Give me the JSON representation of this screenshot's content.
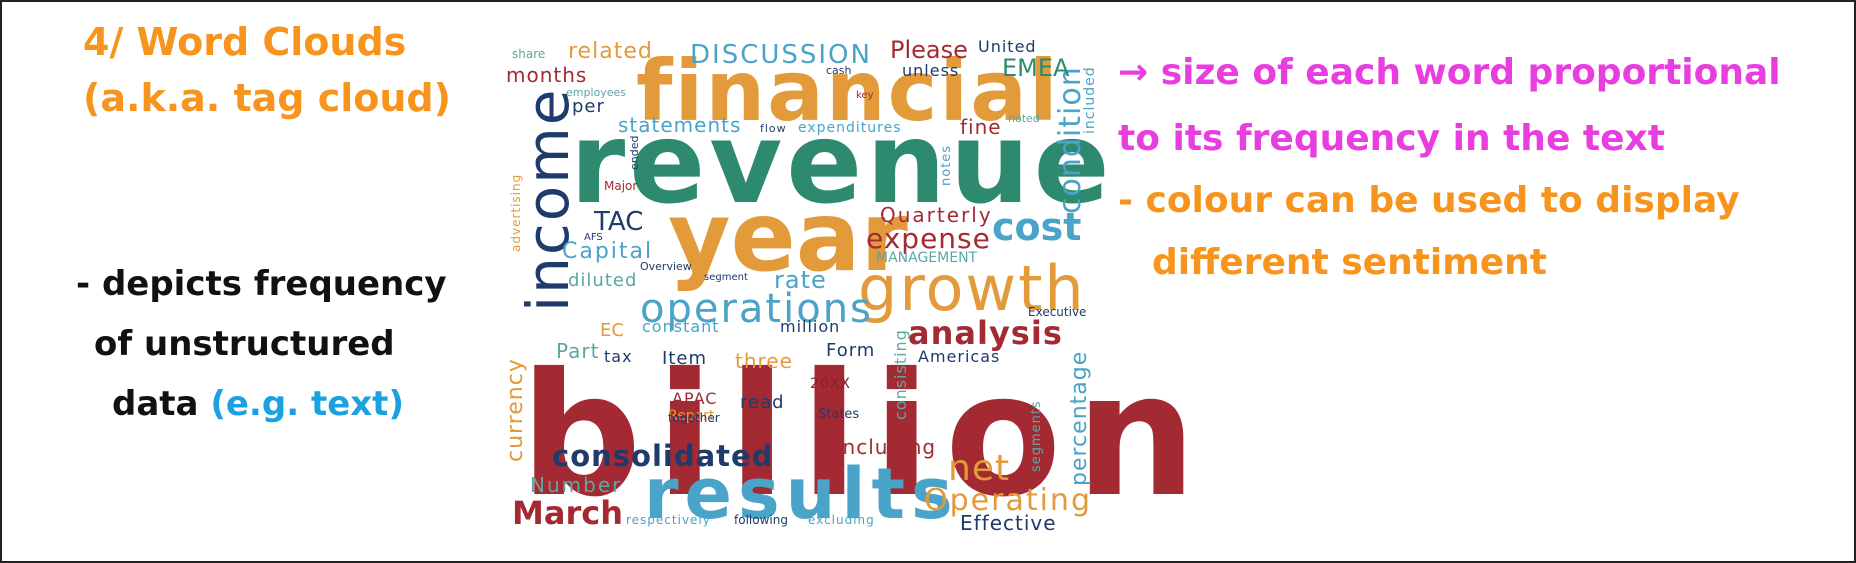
{
  "slide": {
    "title_line1": "4/ Word Clouds",
    "title_line2": "(a.k.a. tag cloud)",
    "left_line1": "- depicts frequency",
    "left_line2": "of unstructured",
    "left_line3_prefix": "data ",
    "left_line3_paren_open": "(",
    "left_line3_eg": "e.g. text",
    "left_line3_paren_close": ")",
    "right_line1": "→ size of each word proportional",
    "right_line2": "to its frequency in the text",
    "right_line3": "- colour can be used to display",
    "right_line4": "different sentiment",
    "colors": {
      "orange": "#f7941d",
      "magenta": "#e83ee0",
      "black": "#111111",
      "blue": "#1ba1e2"
    }
  },
  "wordcloud": {
    "palette": {
      "red": "#a32a33",
      "green": "#2e8a6e",
      "orange": "#e39a3b",
      "navy": "#1f3b6b",
      "blue": "#4aa3c8",
      "teal": "#5aa8a0",
      "darkred": "#8c1f2a"
    },
    "words": [
      {
        "text": "billion",
        "color": "red"
      },
      {
        "text": "revenue",
        "color": "green"
      },
      {
        "text": "year",
        "color": "orange"
      },
      {
        "text": "financial",
        "color": "orange"
      },
      {
        "text": "income",
        "color": "navy"
      },
      {
        "text": "growth",
        "color": "orange"
      },
      {
        "text": "results",
        "color": "blue"
      },
      {
        "text": "operations",
        "color": "blue"
      },
      {
        "text": "cost",
        "color": "blue"
      },
      {
        "text": "consolidated",
        "color": "navy"
      },
      {
        "text": "analysis",
        "color": "red"
      },
      {
        "text": "condition",
        "color": "blue"
      },
      {
        "text": "net",
        "color": "orange"
      },
      {
        "text": "Operating",
        "color": "orange"
      },
      {
        "text": "March",
        "color": "red"
      },
      {
        "text": "expense",
        "color": "red"
      },
      {
        "text": "DISCUSSION",
        "color": "blue"
      },
      {
        "text": "Please",
        "color": "red"
      },
      {
        "text": "related",
        "color": "orange"
      },
      {
        "text": "EMEA",
        "color": "green"
      },
      {
        "text": "currency",
        "color": "orange"
      },
      {
        "text": "percentage",
        "color": "blue"
      },
      {
        "text": "Capital",
        "color": "blue"
      },
      {
        "text": "TAC",
        "color": "navy"
      },
      {
        "text": "rate",
        "color": "blue"
      },
      {
        "text": "statements",
        "color": "blue"
      },
      {
        "text": "months",
        "color": "red"
      },
      {
        "text": "Quarterly",
        "color": "red"
      },
      {
        "text": "three",
        "color": "orange"
      },
      {
        "text": "Number",
        "color": "teal"
      },
      {
        "text": "including",
        "color": "red"
      },
      {
        "text": "Effective",
        "color": "navy"
      },
      {
        "text": "fine",
        "color": "red"
      },
      {
        "text": "United",
        "color": "navy"
      },
      {
        "text": "unless",
        "color": "navy"
      },
      {
        "text": "per",
        "color": "navy"
      },
      {
        "text": "Part",
        "color": "teal"
      },
      {
        "text": "Item",
        "color": "navy"
      },
      {
        "text": "Form",
        "color": "navy"
      },
      {
        "text": "Americas",
        "color": "navy"
      },
      {
        "text": "read",
        "color": "navy"
      },
      {
        "text": "diluted",
        "color": "teal"
      },
      {
        "text": "MANAGEMENT",
        "color": "teal"
      },
      {
        "text": "million",
        "color": "navy"
      },
      {
        "text": "constant",
        "color": "blue"
      },
      {
        "text": "EC",
        "color": "orange"
      },
      {
        "text": "tax",
        "color": "navy"
      },
      {
        "text": "APAC",
        "color": "red"
      },
      {
        "text": "Report",
        "color": "orange"
      },
      {
        "text": "20XX",
        "color": "darkred"
      },
      {
        "text": "together",
        "color": "navy"
      },
      {
        "text": "States",
        "color": "navy"
      },
      {
        "text": "consisting",
        "color": "teal"
      },
      {
        "text": "segments",
        "color": "teal"
      },
      {
        "text": "share",
        "color": "teal"
      },
      {
        "text": "employees",
        "color": "teal"
      },
      {
        "text": "cash",
        "color": "navy"
      },
      {
        "text": "flow",
        "color": "navy"
      },
      {
        "text": "expenditures",
        "color": "blue"
      },
      {
        "text": "key",
        "color": "red"
      },
      {
        "text": "noted",
        "color": "teal"
      },
      {
        "text": "included",
        "color": "blue"
      },
      {
        "text": "notes",
        "color": "blue"
      },
      {
        "text": "ended",
        "color": "navy"
      },
      {
        "text": "Major",
        "color": "red"
      },
      {
        "text": "AFS",
        "color": "navy"
      },
      {
        "text": "Overview",
        "color": "navy"
      },
      {
        "text": "segment",
        "color": "navy"
      },
      {
        "text": "advertising",
        "color": "orange"
      },
      {
        "text": "Executive",
        "color": "navy"
      },
      {
        "text": "respectively",
        "color": "blue"
      },
      {
        "text": "following",
        "color": "navy"
      },
      {
        "text": "excluding",
        "color": "blue"
      }
    ]
  }
}
